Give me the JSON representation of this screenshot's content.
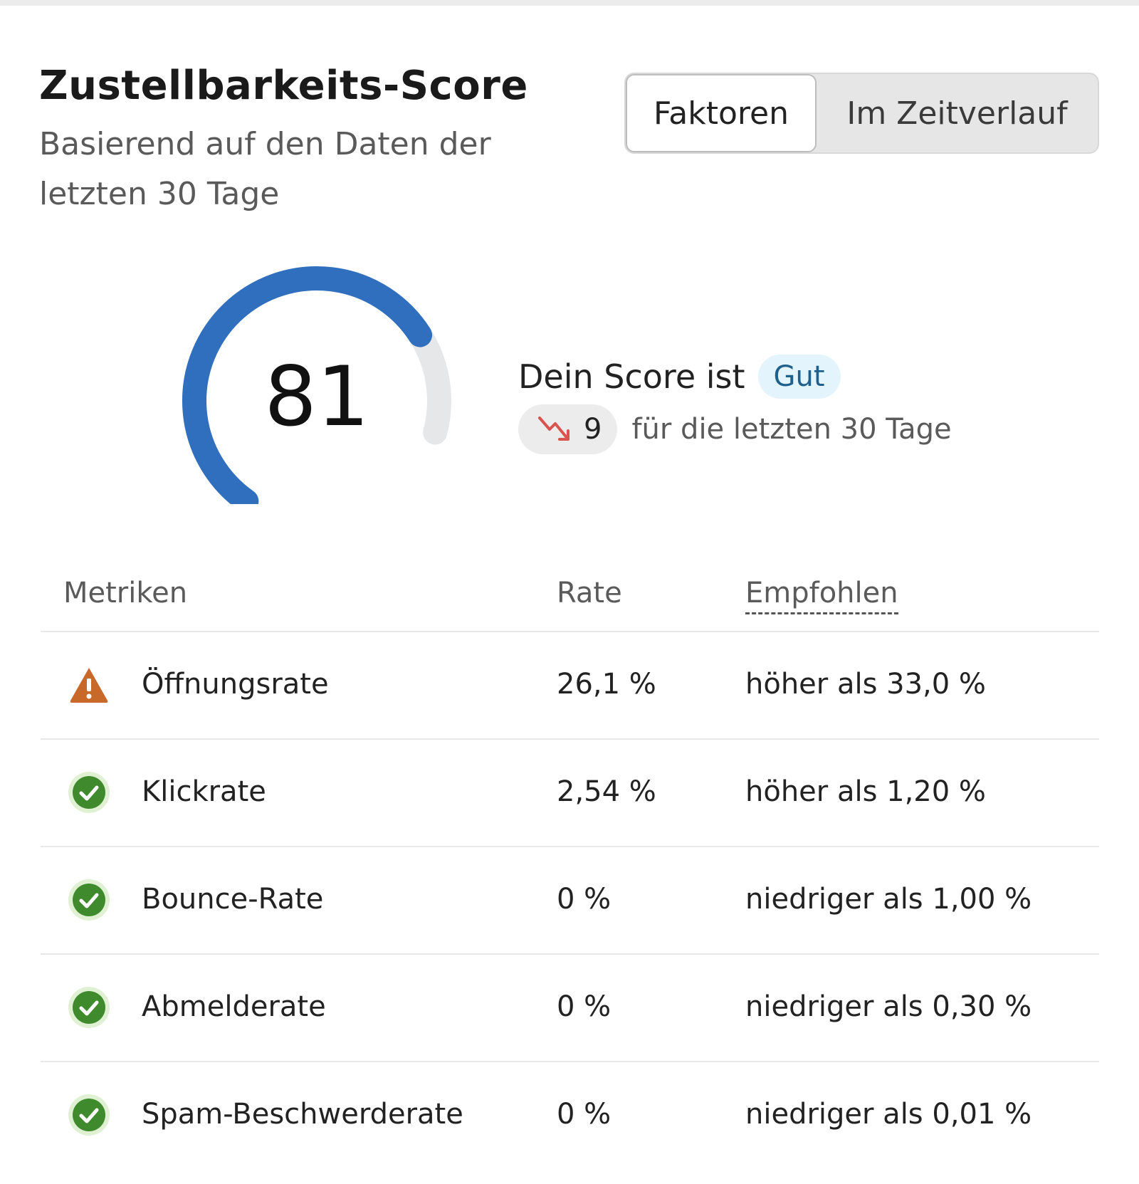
{
  "header": {
    "title": "Zustellbarkeits-Score",
    "subtitle": "Basierend auf den Daten der letzten 30 Tage"
  },
  "tabs": {
    "active": "Faktoren",
    "inactive": "Im Zeitverlauf"
  },
  "score": {
    "value": "81",
    "max": 100,
    "gauge_fill_color": "#2f6fbd",
    "gauge_track_color": "#e6e7e9",
    "status_label": "Dein Score ist",
    "status_badge": "Gut",
    "trend_value": "9",
    "trend_direction": "down",
    "trend_icon": "trending-down-icon",
    "trend_text": "für die letzten 30 Tage"
  },
  "table": {
    "headers": {
      "metrics": "Metriken",
      "rate": "Rate",
      "recommended": "Empfohlen"
    },
    "rows": [
      {
        "status": "warning",
        "icon": "warning-icon",
        "name": "Öffnungsrate",
        "rate": "26,1 %",
        "recommended": "höher als 33,0 %"
      },
      {
        "status": "ok",
        "icon": "check-circle-icon",
        "name": "Klickrate",
        "rate": "2,54 %",
        "recommended": "höher als 1,20 %"
      },
      {
        "status": "ok",
        "icon": "check-circle-icon",
        "name": "Bounce-Rate",
        "rate": "0 %",
        "recommended": "niedriger als 1,00 %"
      },
      {
        "status": "ok",
        "icon": "check-circle-icon",
        "name": "Abmelderate",
        "rate": "0 %",
        "recommended": "niedriger als 0,30 %"
      },
      {
        "status": "ok",
        "icon": "check-circle-icon",
        "name": "Spam-Beschwerderate",
        "rate": "0 %",
        "recommended": "niedriger als 0,01 %"
      }
    ]
  },
  "colors": {
    "warning": "#c8692a",
    "ok": "#3f8a2c",
    "ok_halo": "#dff0d3",
    "trend_down": "#d9534f"
  }
}
